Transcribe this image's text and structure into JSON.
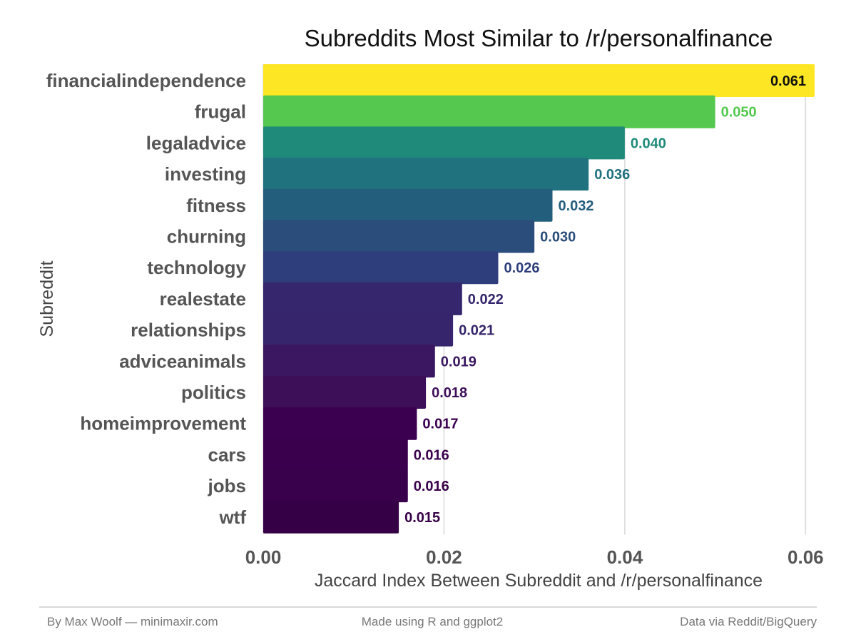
{
  "chart_data": {
    "type": "bar",
    "orientation": "horizontal",
    "title": "Subreddits Most Similar to /r/personalfinance",
    "xlabel": "Jaccard Index Between Subreddit and /r/personalfinance",
    "ylabel": "Subreddit",
    "xlim": [
      0,
      0.061
    ],
    "xticks": [
      "0.00",
      "0.02",
      "0.04",
      "0.06"
    ],
    "grid": "vertical major lines",
    "categories": [
      "financialindependence",
      "frugal",
      "legaladvice",
      "investing",
      "fitness",
      "churning",
      "technology",
      "realestate",
      "relationships",
      "adviceanimals",
      "politics",
      "homeimprovement",
      "cars",
      "jobs",
      "wtf"
    ],
    "values": [
      0.061,
      0.05,
      0.04,
      0.036,
      0.032,
      0.03,
      0.026,
      0.022,
      0.021,
      0.019,
      0.018,
      0.017,
      0.016,
      0.016,
      0.015
    ],
    "value_labels": [
      "0.061",
      "0.050",
      "0.040",
      "0.036",
      "0.032",
      "0.030",
      "0.026",
      "0.022",
      "0.021",
      "0.019",
      "0.018",
      "0.017",
      "0.016",
      "0.016",
      "0.015"
    ],
    "colors": [
      "#fde725",
      "#54c84f",
      "#1f8a7a",
      "#21727f",
      "#245e7d",
      "#2a4d7b",
      "#2e3d7b",
      "#35266d",
      "#36256c",
      "#3a1760",
      "#3d0f59",
      "#3b004f",
      "#3a004d",
      "#39004b",
      "#360047"
    ],
    "value_label_colors": [
      "#111111",
      "#54c84f",
      "#1f8a7a",
      "#21727f",
      "#245e7d",
      "#2a4d7b",
      "#2e3d7b",
      "#35266d",
      "#36256c",
      "#3a1760",
      "#3d0f59",
      "#3b004f",
      "#3a004d",
      "#39004b",
      "#360047"
    ]
  },
  "footer": {
    "left": "By Max Woolf — minimaxir.com",
    "center": "Made using R and ggplot2",
    "right": "Data via Reddit/BigQuery"
  }
}
